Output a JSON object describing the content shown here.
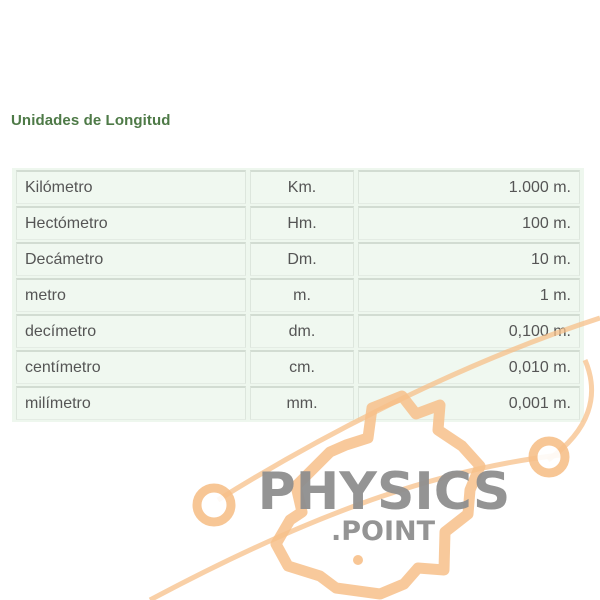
{
  "title": "Unidades de Longitud",
  "rows": [
    {
      "name": "Kilómetro",
      "abbr": "Km.",
      "value": "1.000 m."
    },
    {
      "name": "Hectómetro",
      "abbr": "Hm.",
      "value": "100 m."
    },
    {
      "name": "Decámetro",
      "abbr": "Dm.",
      "value": "10 m."
    },
    {
      "name": "metro",
      "abbr": "m.",
      "value": "1 m."
    },
    {
      "name": "decímetro",
      "abbr": "dm.",
      "value": "0,100 m."
    },
    {
      "name": "centímetro",
      "abbr": "cm.",
      "value": "0,010 m."
    },
    {
      "name": "milímetro",
      "abbr": "mm.",
      "value": "0,001 m."
    }
  ],
  "watermark": {
    "line1": "PHYSICS",
    "line2": ".POINT",
    "text_color": "#8f8f8f",
    "accent_color": "#f7c08a"
  }
}
